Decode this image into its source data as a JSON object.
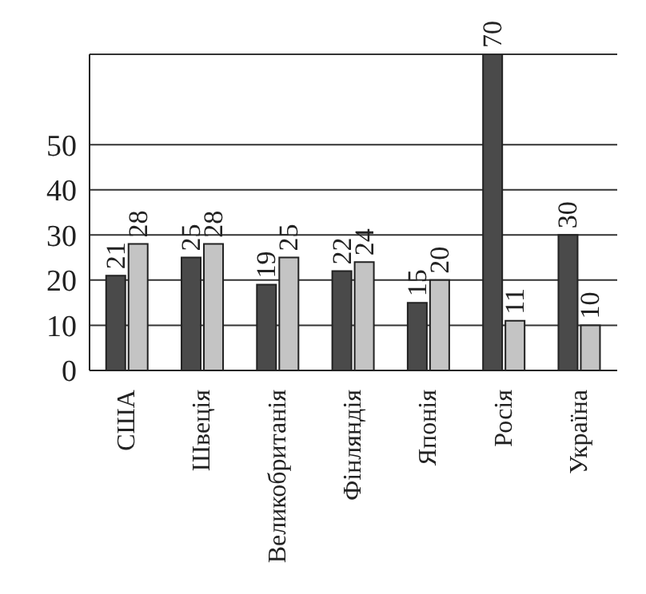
{
  "chart_data": {
    "type": "bar",
    "categories": [
      "США",
      "Швеція",
      "Великобританія",
      "Фінляндія",
      "Японія",
      "Росія",
      "Україна"
    ],
    "series": [
      {
        "color": "#4a4a4a",
        "values": [
          21,
          25,
          19,
          22,
          15,
          70,
          30
        ]
      },
      {
        "color": "#c4c4c4",
        "values": [
          28,
          28,
          25,
          24,
          20,
          11,
          10
        ]
      }
    ],
    "ylim": [
      0,
      70
    ],
    "yticks": [
      0,
      10,
      20,
      30,
      40,
      50
    ],
    "grid": "y",
    "data_labels": true
  }
}
